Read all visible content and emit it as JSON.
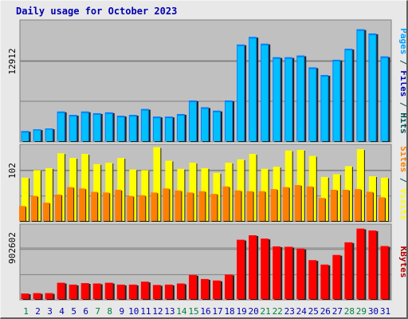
{
  "chart_data": {
    "type": "bar",
    "title": "Daily usage for October 2023",
    "categories": [
      "1",
      "2",
      "3",
      "4",
      "5",
      "6",
      "7",
      "8",
      "9",
      "10",
      "11",
      "12",
      "13",
      "14",
      "15",
      "16",
      "17",
      "18",
      "19",
      "20",
      "21",
      "22",
      "23",
      "24",
      "25",
      "26",
      "27",
      "28",
      "29",
      "30",
      "31"
    ],
    "weekend_days": [
      "1",
      "7",
      "8",
      "14",
      "15",
      "21",
      "22",
      "28",
      "29"
    ],
    "colors": {
      "hits": "#0080ff",
      "hits_front": "#00c0ff",
      "hits_text": "#005050",
      "files": "#0000b0",
      "pages": "#00a0ff",
      "visits": "#ffff00",
      "sites": "#ff8000",
      "kbytes": "#ff0000",
      "kbytes_text": "#b00000",
      "weekend_label": "#008040",
      "weekday_label": "#0000b0",
      "title": "#0000b0",
      "plot_bg": "#c0c0c0",
      "frame_bg": "#e8e8e8"
    },
    "panels": [
      {
        "id": "hits_files_pages",
        "y_tick_label": "12912",
        "ylim": [
          0,
          14200
        ],
        "right_labels": [
          {
            "text": "Pages",
            "color_key": "pages"
          },
          {
            "text": " / ",
            "color_key": "hits_text"
          },
          {
            "text": "Files",
            "color_key": "files"
          },
          {
            "text": " / ",
            "color_key": "hits_text"
          },
          {
            "text": "Hits",
            "color_key": "hits_text"
          }
        ],
        "series": [
          {
            "values": [
              1200,
              1400,
              1500,
              3500,
              3100,
              3500,
              3300,
              3400,
              3000,
              3100,
              3800,
              2900,
              2900,
              3200,
              4800,
              4000,
              3600,
              4800,
              11400,
              12300,
              11500,
              9900,
              9900,
              10100,
              8700,
              7800,
              9600,
              10900,
              13200,
              12700,
              10000
            ]
          },
          {
            "values": [
              1150,
              1380,
              1480,
              3450,
              3050,
              3450,
              3250,
              3350,
              2950,
              3050,
              3750,
              2850,
              2850,
              3150,
              4750,
              3950,
              3550,
              4750,
              11350,
              12250,
              11450,
              9850,
              9850,
              10050,
              8650,
              7750,
              9550,
              10850,
              13150,
              12650,
              9950
            ]
          },
          {
            "values": [
              1100,
              1350,
              1450,
              3400,
              3000,
              3400,
              3200,
              3300,
              2900,
              3000,
              3700,
              2800,
              2800,
              3100,
              4700,
              3900,
              3500,
              4700,
              11300,
              12200,
              11400,
              9800,
              9800,
              10000,
              8600,
              7700,
              9500,
              10800,
              13100,
              12600,
              9900
            ]
          }
        ]
      },
      {
        "id": "visits_sites",
        "y_tick_label": "102",
        "ylim": [
          0,
          112
        ],
        "right_labels": [
          {
            "text": "Sites",
            "color_key": "sites"
          },
          {
            "text": " / ",
            "color_key": "hits_text"
          },
          {
            "text": "Visits",
            "color_key": "visits"
          }
        ],
        "series": [
          {
            "values": [
              64,
              75,
              78,
              100,
              93,
              99,
              84,
              86,
              93,
              76,
              75,
              109,
              89,
              77,
              86,
              78,
              71,
              86,
              91,
              99,
              77,
              80,
              104,
              105,
              96,
              65,
              69,
              81,
              106,
              66,
              64
            ]
          },
          {
            "values": [
              22,
              37,
              27,
              39,
              50,
              48,
              43,
              42,
              46,
              37,
              38,
              42,
              48,
              45,
              42,
              44,
              40,
              51,
              45,
              44,
              44,
              47,
              50,
              53,
              51,
              34,
              46,
              46,
              47,
              43,
              35
            ]
          }
        ]
      },
      {
        "id": "kbytes",
        "y_tick_label": "902602",
        "ylim": [
          0,
          1000000
        ],
        "right_labels": [
          {
            "text": "KBytes",
            "color_key": "kbytes_text"
          }
        ],
        "series": [
          {
            "values": [
              75000,
              80000,
              80000,
              220000,
              195000,
              215000,
              210000,
              220000,
              195000,
              195000,
              235000,
              190000,
              195000,
              210000,
              325000,
              270000,
              250000,
              330000,
              800000,
              860000,
              815000,
              710000,
              705000,
              680000,
              525000,
              465000,
              595000,
              765000,
              950000,
              925000,
              715000
            ]
          }
        ]
      }
    ]
  }
}
